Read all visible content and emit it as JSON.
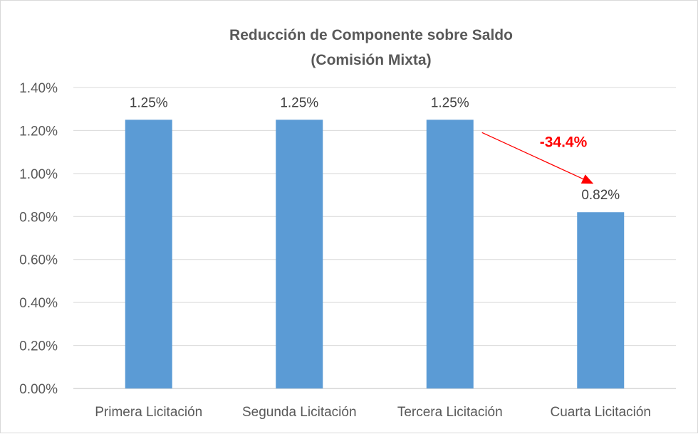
{
  "chart_data": {
    "type": "bar",
    "title": "Reducción de Componente sobre Saldo",
    "subtitle": "(Comisión Mixta)",
    "categories": [
      "Primera Licitación",
      "Segunda Licitación",
      "Tercera Licitación",
      "Cuarta Licitación"
    ],
    "values": [
      1.25,
      1.25,
      1.25,
      0.82
    ],
    "data_labels": [
      "1.25%",
      "1.25%",
      "1.25%",
      "0.82%"
    ],
    "ylim": [
      0,
      1.4
    ],
    "yticks": [
      0,
      0.2,
      0.4,
      0.6,
      0.8,
      1.0,
      1.2,
      1.4
    ],
    "ytick_labels": [
      "0.00%",
      "0.20%",
      "0.40%",
      "0.60%",
      "0.80%",
      "1.00%",
      "1.20%",
      "1.40%"
    ],
    "grid": true,
    "legend": "none",
    "bar_color": "#5b9bd5",
    "annotation": {
      "text": "-34.4%",
      "color": "#ff0000",
      "from_category": 2,
      "to_category": 3
    }
  }
}
